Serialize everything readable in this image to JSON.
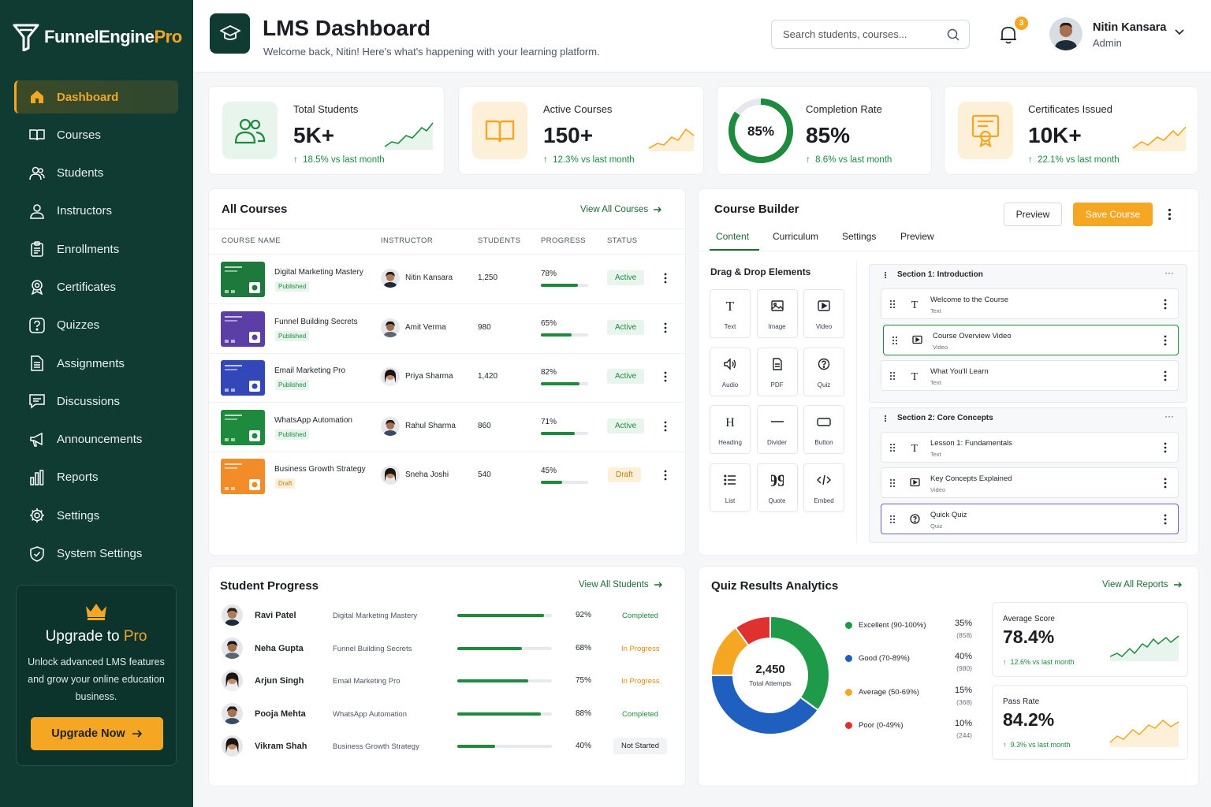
{
  "brand": {
    "name_main": "FunnelEngine",
    "name_pro": "Pro"
  },
  "sidebar": {
    "items": [
      {
        "label": "Dashboard",
        "icon": "home-icon"
      },
      {
        "label": "Courses",
        "icon": "book-icon"
      },
      {
        "label": "Students",
        "icon": "students-icon"
      },
      {
        "label": "Instructors",
        "icon": "person-icon"
      },
      {
        "label": "Enrollments",
        "icon": "clipboard-icon"
      },
      {
        "label": "Certificates",
        "icon": "award-icon"
      },
      {
        "label": "Quizzes",
        "icon": "question-icon"
      },
      {
        "label": "Assignments",
        "icon": "document-icon"
      },
      {
        "label": "Discussions",
        "icon": "chat-icon"
      },
      {
        "label": "Announcements",
        "icon": "megaphone-icon"
      },
      {
        "label": "Reports",
        "icon": "bar-chart-icon"
      },
      {
        "label": "Settings",
        "icon": "gear-icon"
      },
      {
        "label": "System Settings",
        "icon": "shield-icon"
      }
    ],
    "upgrade": {
      "title_main": "Upgrade to ",
      "title_pro": "Pro",
      "text": "Unlock advanced LMS features and grow your online education business.",
      "button": "Upgrade Now"
    }
  },
  "header": {
    "title": "LMS Dashboard",
    "subtitle": "Welcome back, Nitin! Here's what's happening with your learning platform.",
    "search_placeholder": "Search students, courses...",
    "notifications": "3",
    "user_name": "Nitin Kansara",
    "user_role": "Admin"
  },
  "stats": [
    {
      "label": "Total Students",
      "value": "5K+",
      "delta": "18.5% vs last month"
    },
    {
      "label": "Active Courses",
      "value": "150+",
      "delta": "12.3% vs last month"
    },
    {
      "label": "Completion Rate",
      "value": "85%",
      "ring": "85%",
      "ring_fraction": 0.85,
      "delta": "8.6% vs last month"
    },
    {
      "label": "Certificates Issued",
      "value": "10K+",
      "delta": "22.1% vs last month"
    }
  ],
  "courses": {
    "title": "All Courses",
    "link": "View All Courses",
    "headers": [
      "COURSE NAME",
      "INSTRUCTOR",
      "STUDENTS",
      "PROGRESS",
      "STATUS"
    ],
    "rows": [
      {
        "name": "Digital Marketing Mastery",
        "state": "Published",
        "instructor": "Nitin Kansara",
        "students": "1,250",
        "progress": "78%",
        "progress_fraction": 0.78,
        "status": "Active",
        "thumb_color": "#1e7a3c"
      },
      {
        "name": "Funnel Building Secrets",
        "state": "Published",
        "instructor": "Amit Verma",
        "students": "980",
        "progress": "65%",
        "progress_fraction": 0.65,
        "status": "Active",
        "thumb_color": "#5b3fa6"
      },
      {
        "name": "Email Marketing Pro",
        "state": "Published",
        "instructor": "Priya Sharma",
        "students": "1,420",
        "progress": "82%",
        "progress_fraction": 0.82,
        "status": "Active",
        "thumb_color": "#3347b8"
      },
      {
        "name": "WhatsApp Automation",
        "state": "Published",
        "instructor": "Rahul Sharma",
        "students": "860",
        "progress": "71%",
        "progress_fraction": 0.71,
        "status": "Active",
        "thumb_color": "#1e8a3e"
      },
      {
        "name": "Business Growth Strategy",
        "state": "Draft",
        "instructor": "Sneha Joshi",
        "students": "540",
        "progress": "45%",
        "progress_fraction": 0.45,
        "status": "Draft",
        "thumb_color": "#f28c28"
      }
    ]
  },
  "builder": {
    "title": "Course Builder",
    "preview_btn": "Preview",
    "save_btn": "Save Course",
    "tabs": [
      "Content",
      "Curriculum",
      "Settings",
      "Preview"
    ],
    "elements_title": "Drag & Drop Elements",
    "elements": [
      "Text",
      "Image",
      "Video",
      "Audio",
      "PDF",
      "Quiz",
      "Heading",
      "Divider",
      "Button",
      "List",
      "Quote",
      "Embed"
    ],
    "sections": [
      {
        "title": "Section 1: Introduction",
        "lessons": [
          {
            "name": "Welcome to the Course",
            "type": "Text"
          },
          {
            "name": "Course Overview Video",
            "type": "Video"
          },
          {
            "name": "What You'll Learn",
            "type": "Text"
          }
        ]
      },
      {
        "title": "Section 2: Core Concepts",
        "lessons": [
          {
            "name": "Lesson 1: Fundamentals",
            "type": "Text"
          },
          {
            "name": "Key Concepts Explained",
            "type": "Video"
          },
          {
            "name": "Quick Quiz",
            "type": "Quiz"
          }
        ]
      }
    ]
  },
  "progress": {
    "title": "Student Progress",
    "link": "View All Students",
    "rows": [
      {
        "name": "Ravi Patel",
        "course": "Digital Marketing Mastery",
        "pct": "92%",
        "fraction": 0.92,
        "status": "Completed"
      },
      {
        "name": "Neha Gupta",
        "course": "Funnel Building Secrets",
        "pct": "68%",
        "fraction": 0.68,
        "status": "In Progress"
      },
      {
        "name": "Arjun Singh",
        "course": "Email Marketing Pro",
        "pct": "75%",
        "fraction": 0.75,
        "status": "In Progress"
      },
      {
        "name": "Pooja Mehta",
        "course": "WhatsApp Automation",
        "pct": "88%",
        "fraction": 0.88,
        "status": "Completed"
      },
      {
        "name": "Vikram Shah",
        "course": "Business Growth Strategy",
        "pct": "40%",
        "fraction": 0.4,
        "status": "Not Started"
      }
    ]
  },
  "quiz": {
    "title": "Quiz Results Analytics",
    "link": "View All Reports",
    "total": "2,450",
    "total_label": "Total Attempts",
    "segments": [
      {
        "label": "Excellent (90-100%)",
        "pct": "35%",
        "count": "(858)",
        "value": 35,
        "color": "#1e9a48"
      },
      {
        "label": "Good (70-89%)",
        "pct": "40%",
        "count": "(980)",
        "value": 40,
        "color": "#1f5fbf"
      },
      {
        "label": "Average (50-69%)",
        "pct": "15%",
        "count": "(368)",
        "value": 15,
        "color": "#f5a623"
      },
      {
        "label": "Poor (0-49%)",
        "pct": "10%",
        "count": "(244)",
        "value": 10,
        "color": "#e03131"
      }
    ],
    "avg_label": "Average Score",
    "avg_value": "78.4%",
    "avg_delta": "12.6% vs last month",
    "pass_label": "Pass Rate",
    "pass_value": "84.2%",
    "pass_delta": "9.3% vs last month"
  },
  "colors": {
    "brand": "#0f3b33",
    "accent": "#f5a623",
    "success": "#1e8a3e"
  }
}
